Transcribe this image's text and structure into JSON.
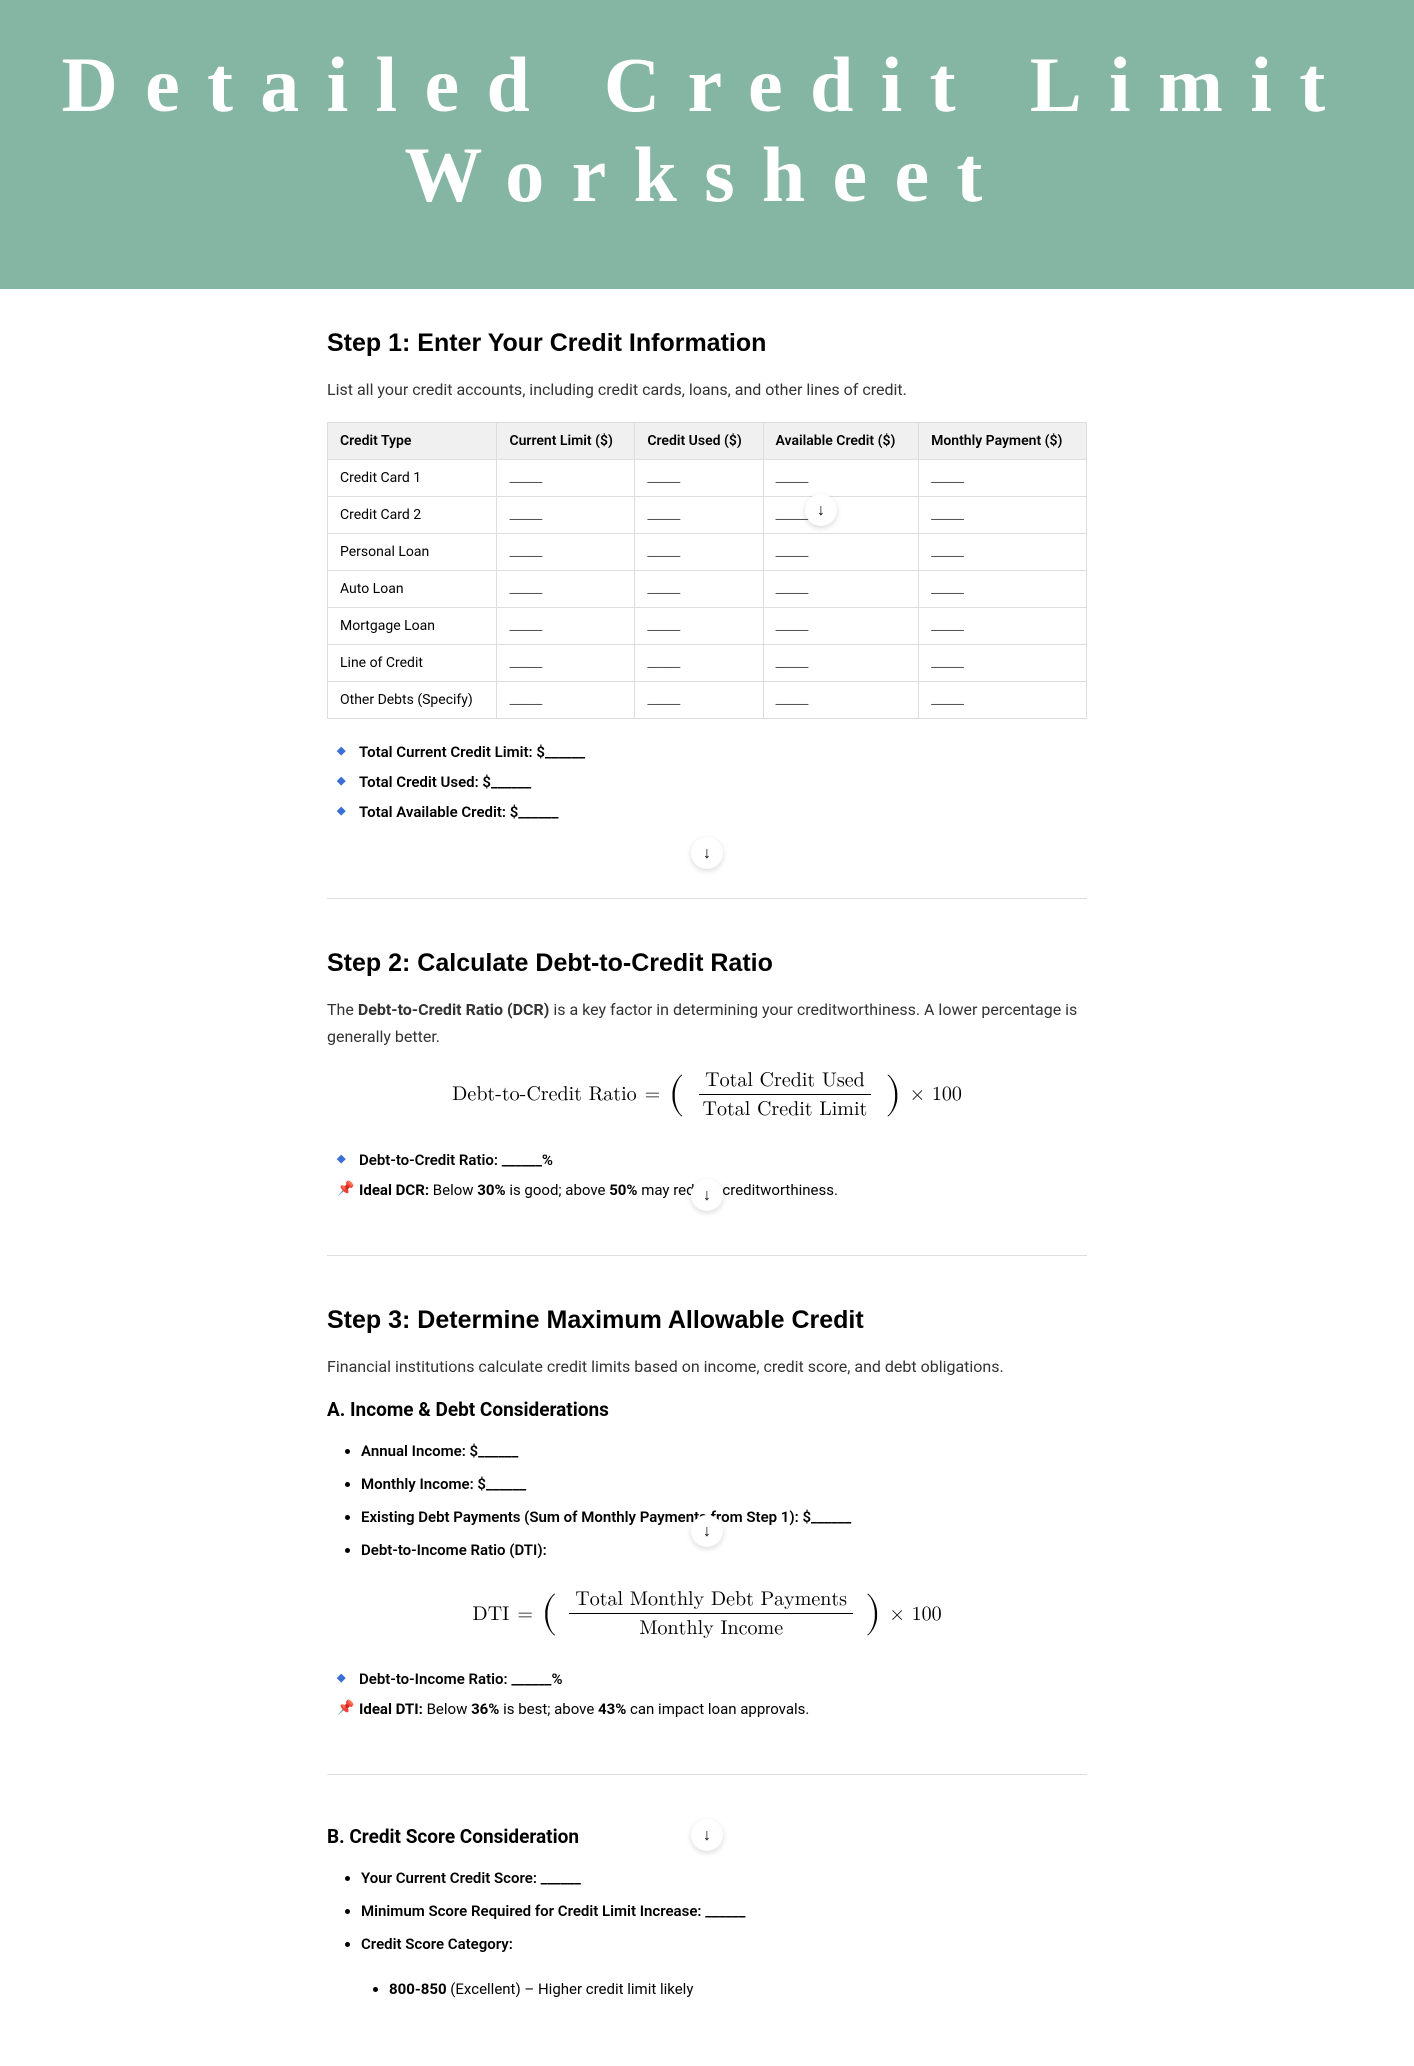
{
  "hero_title": "Detailed Credit Limit Worksheet",
  "step1": {
    "heading": "Step 1: Enter Your Credit Information",
    "intro": "List all your credit accounts, including credit cards, loans, and other lines of credit.",
    "columns": [
      "Credit Type",
      "Current Limit ($)",
      "Credit Used ($)",
      "Available Credit ($)",
      "Monthly Payment ($)"
    ],
    "rows": [
      "Credit Card 1",
      "Credit Card 2",
      "Personal Loan",
      "Auto Loan",
      "Mortgage Loan",
      "Line of Credit",
      "Other Debts (Specify)"
    ],
    "blank": "______",
    "totals": [
      "Total Current Credit Limit: $______",
      "Total Credit Used: $______",
      "Total Available Credit: $______"
    ]
  },
  "step2": {
    "heading": "Step 2: Calculate Debt-to-Credit Ratio",
    "intro_pre": "The ",
    "intro_bold": "Debt-to-Credit Ratio (DCR)",
    "intro_post": " is a key factor in determining your creditworthiness. A lower percentage is generally better.",
    "formula_lhs": "Debt-to-Credit Ratio",
    "formula_num": "Total Credit Used",
    "formula_den": "Total Credit Limit",
    "formula_tail": "× 100",
    "dcr_line": "Debt-to-Credit Ratio: ______%",
    "ideal_label": "Ideal DCR:",
    "ideal_pre": " Below ",
    "ideal_v1": "30%",
    "ideal_mid": " is good; above ",
    "ideal_v2": "50%",
    "ideal_post": " may reduce creditworthiness."
  },
  "step3": {
    "heading": "Step 3: Determine Maximum Allowable Credit",
    "intro": "Financial institutions calculate credit limits based on income, credit score, and debt obligations.",
    "a_heading": "A. Income & Debt Considerations",
    "a_items": [
      "Annual Income: $______",
      "Monthly Income: $______",
      "Existing Debt Payments (Sum of Monthly Payments from Step 1): $______",
      "Debt-to-Income Ratio (DTI):"
    ],
    "dti_lhs": "DTI",
    "dti_num": "Total Monthly Debt Payments",
    "dti_den": "Monthly Income",
    "dti_tail": "× 100",
    "dti_line": "Debt-to-Income Ratio: ______%",
    "dti_ideal_label": "Ideal DTI:",
    "dti_ideal_pre": " Below ",
    "dti_ideal_v1": "36%",
    "dti_ideal_mid": " is best; above ",
    "dti_ideal_v2": "43%",
    "dti_ideal_post": " can impact loan approvals.",
    "b_heading": "B. Credit Score Consideration",
    "b_items": [
      "Your Current Credit Score: ______",
      "Minimum Score Required for Credit Limit Increase: ______",
      "Credit Score Category:"
    ],
    "b_sub_range": "800-850",
    "b_sub_text": " (Excellent) – Higher credit limit likely"
  }
}
